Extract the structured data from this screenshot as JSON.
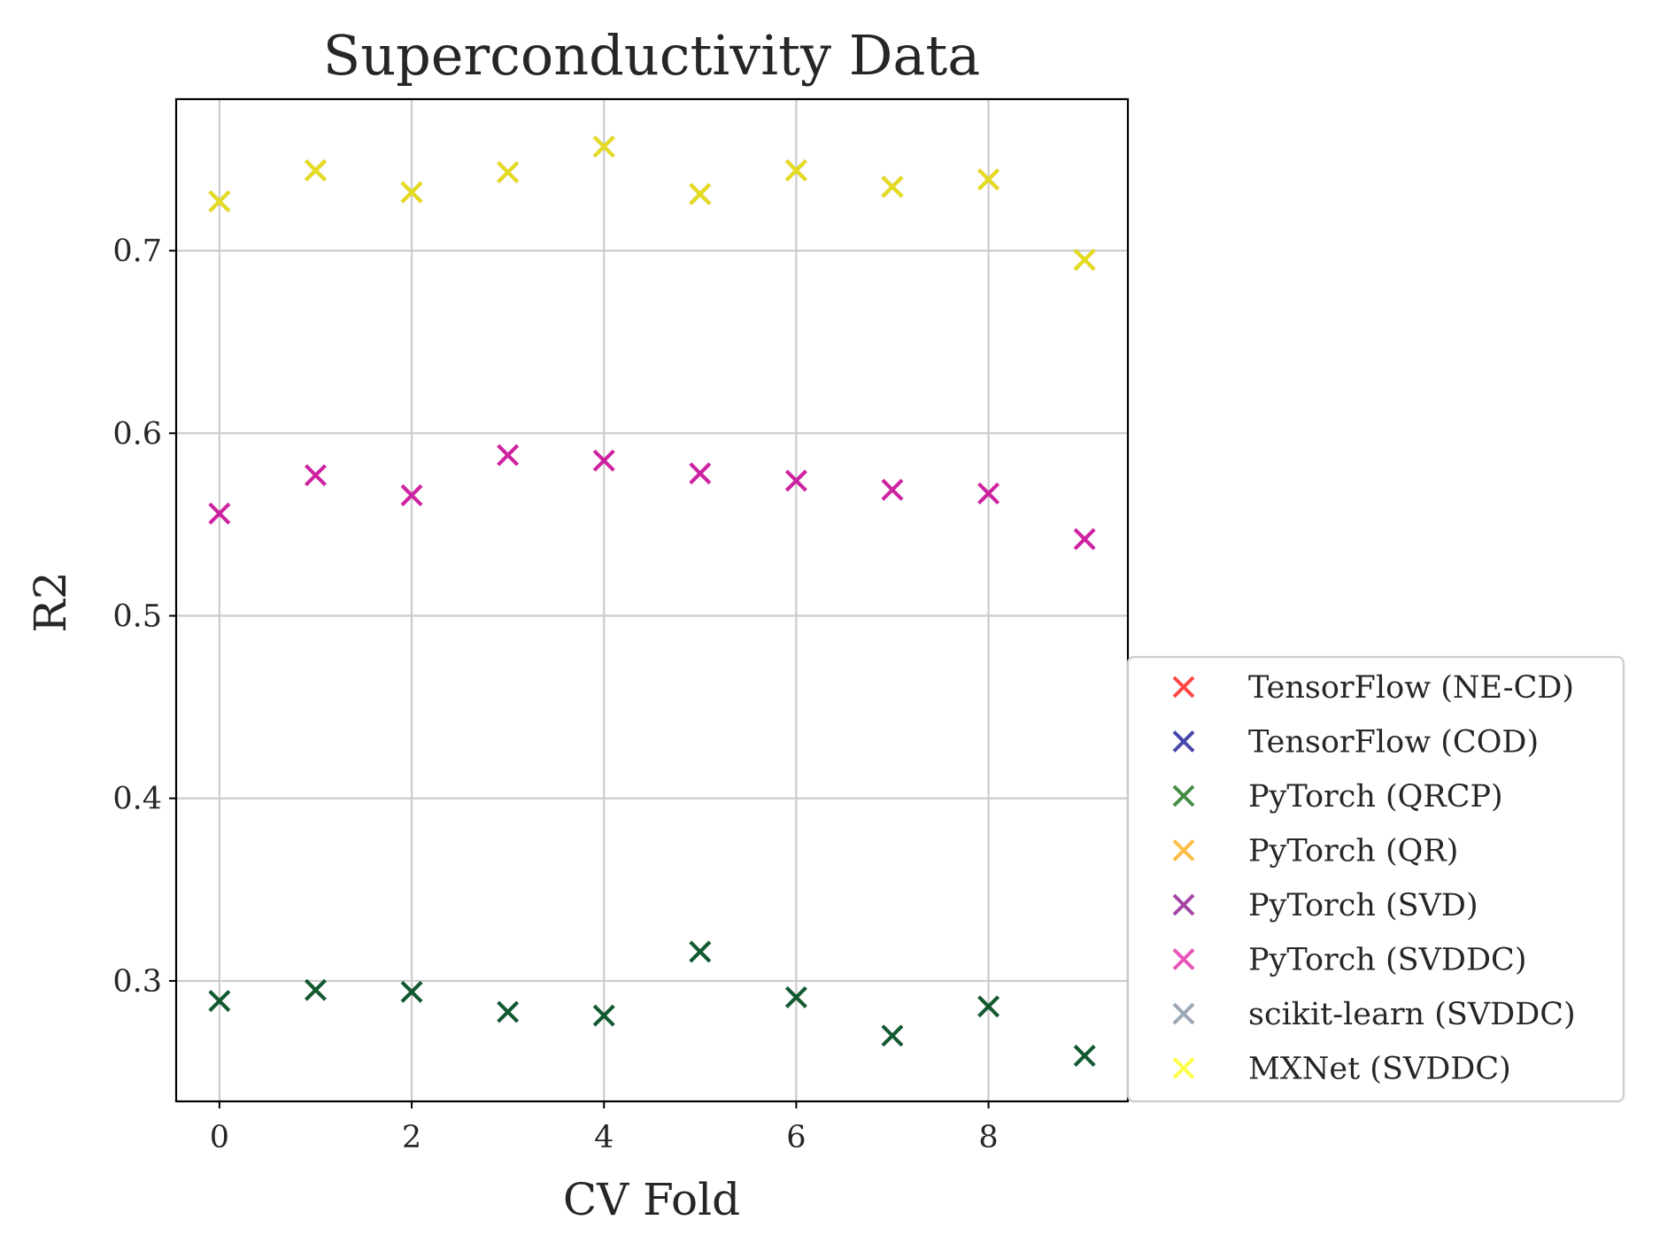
{
  "chart_data": {
    "type": "scatter",
    "title": "Superconductivity Data",
    "xlabel": "CV Fold",
    "ylabel": "R2",
    "xlim": [
      -0.45,
      9.45
    ],
    "ylim": [
      0.234,
      0.783
    ],
    "x_ticks": [
      0,
      2,
      4,
      6,
      8
    ],
    "x_tick_labels": [
      "0",
      "2",
      "4",
      "6",
      "8"
    ],
    "y_ticks": [
      0.3,
      0.4,
      0.5,
      0.6,
      0.7
    ],
    "y_tick_labels": [
      "0.3",
      "0.4",
      "0.5",
      "0.6",
      "0.7"
    ],
    "grid": true,
    "legend_position": "outside lower-right",
    "x": [
      0,
      1,
      2,
      3,
      4,
      5,
      6,
      7,
      8,
      9
    ],
    "series": [
      {
        "name": "TensorFlow (NE-CD)",
        "color": "#ff0000",
        "values": [
          0.727,
          0.744,
          0.732,
          0.743,
          0.757,
          0.731,
          0.744,
          0.735,
          0.739,
          0.695
        ]
      },
      {
        "name": "TensorFlow (COD)",
        "color": "#00008b",
        "values": [
          0.289,
          0.295,
          0.294,
          0.283,
          0.281,
          0.316,
          0.291,
          0.27,
          0.286,
          0.259
        ]
      },
      {
        "name": "PyTorch (QRCP)",
        "color": "#006400",
        "values": [
          0.289,
          0.295,
          0.294,
          0.283,
          0.281,
          0.316,
          0.291,
          0.27,
          0.286,
          0.259
        ]
      },
      {
        "name": "PyTorch (QR)",
        "color": "#ffa500",
        "values": [
          0.727,
          0.744,
          0.732,
          0.743,
          0.757,
          0.731,
          0.744,
          0.735,
          0.739,
          0.695
        ]
      },
      {
        "name": "PyTorch (SVD)",
        "color": "#800080",
        "values": [
          0.556,
          0.577,
          0.566,
          0.588,
          0.585,
          0.578,
          0.574,
          0.569,
          0.567,
          0.542
        ]
      },
      {
        "name": "PyTorch (SVDDC)",
        "color": "#e0159f",
        "values": [
          0.556,
          0.577,
          0.566,
          0.588,
          0.585,
          0.578,
          0.574,
          0.569,
          0.567,
          0.542
        ]
      },
      {
        "name": "scikit-learn (SVDDC)",
        "color": "#778899",
        "values": [
          0.727,
          0.744,
          0.732,
          0.743,
          0.757,
          0.731,
          0.744,
          0.735,
          0.739,
          0.695
        ]
      },
      {
        "name": "MXNet (SVDDC)",
        "color": "#ffff00",
        "values": [
          0.727,
          0.744,
          0.732,
          0.743,
          0.757,
          0.731,
          0.744,
          0.735,
          0.739,
          0.695
        ]
      }
    ]
  }
}
